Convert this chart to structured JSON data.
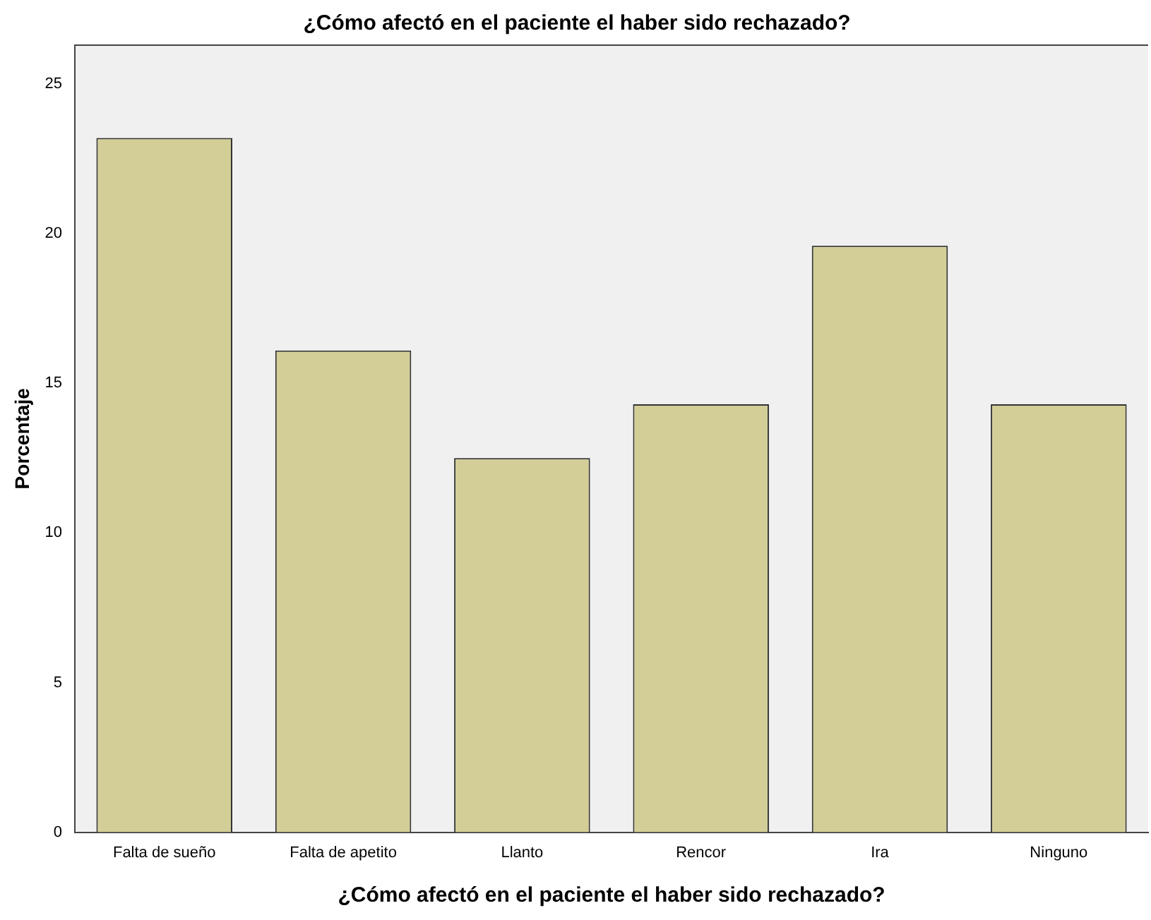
{
  "chart_data": {
    "type": "bar",
    "title": "¿Cómo afectó en el paciente el haber sido rechazado?",
    "xlabel": "¿Cómo afectó en el paciente el haber sido rechazado?",
    "ylabel": "Porcentaje",
    "categories": [
      "Falta de sueño",
      "Falta de apetito",
      "Llanto",
      "Rencor",
      "Ira",
      "Ninguno"
    ],
    "values": [
      23.2,
      16.1,
      12.5,
      14.3,
      19.6,
      14.3
    ],
    "color": "#d3ce97",
    "ylim": [
      0,
      26.3
    ],
    "yticks": [
      0,
      5,
      10,
      15,
      20,
      25
    ],
    "grid": false,
    "legend": false
  }
}
